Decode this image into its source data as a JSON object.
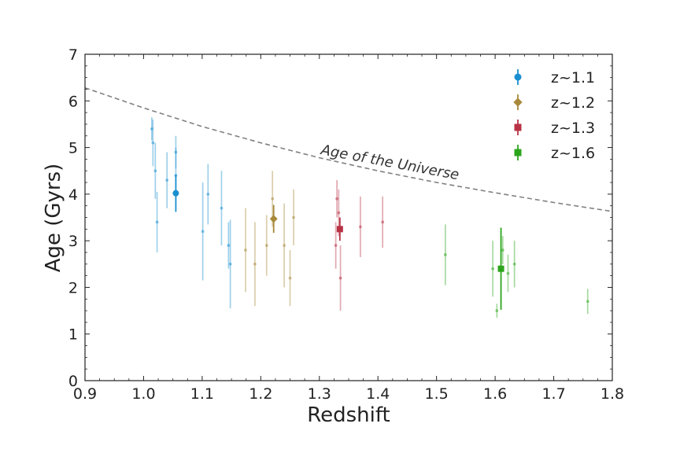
{
  "chart_data": {
    "type": "scatter",
    "title": "",
    "xlabel": "Redshift",
    "ylabel": "Age (Gyrs)",
    "xlim": [
      0.9,
      1.8
    ],
    "ylim": [
      0,
      7
    ],
    "xticks": [
      "0.9",
      "1.0",
      "1.1",
      "1.2",
      "1.3",
      "1.4",
      "1.5",
      "1.6",
      "1.7",
      "1.8"
    ],
    "yticks": [
      "0",
      "1",
      "2",
      "3",
      "4",
      "5",
      "6",
      "7"
    ],
    "grid": false,
    "legend_position": "top-right",
    "annotation": "Age of the Universe",
    "universe_age_curve": {
      "x": [
        0.9,
        1.0,
        1.1,
        1.2,
        1.3,
        1.4,
        1.5,
        1.6,
        1.7,
        1.8
      ],
      "y": [
        6.28,
        5.85,
        5.45,
        5.1,
        4.78,
        4.5,
        4.25,
        4.03,
        3.82,
        3.63
      ]
    },
    "series": [
      {
        "name": "z~1.1",
        "color": "#1a8fd0",
        "marker": "circle",
        "stack": {
          "x": 1.055,
          "y": 4.02,
          "err": 0.4
        },
        "galaxies": [
          {
            "x": 1.014,
            "y": 5.4,
            "err": 0.25
          },
          {
            "x": 1.016,
            "y": 5.1,
            "err": 0.5
          },
          {
            "x": 1.02,
            "y": 4.5,
            "err": 0.6
          },
          {
            "x": 1.023,
            "y": 3.4,
            "err": 0.65
          },
          {
            "x": 1.04,
            "y": 4.3,
            "err": 0.6
          },
          {
            "x": 1.055,
            "y": 4.9,
            "err": 0.35
          },
          {
            "x": 1.055,
            "y": 4.4,
            "err": 0.6
          },
          {
            "x": 1.101,
            "y": 3.2,
            "err": 1.05
          },
          {
            "x": 1.11,
            "y": 4.0,
            "err": 0.65
          },
          {
            "x": 1.133,
            "y": 3.7,
            "err": 0.8
          },
          {
            "x": 1.145,
            "y": 2.9,
            "err": 0.5
          },
          {
            "x": 1.148,
            "y": 2.5,
            "err": 0.95
          }
        ]
      },
      {
        "name": "z~1.2",
        "color": "#a8893a",
        "marker": "diamond",
        "stack": {
          "x": 1.222,
          "y": 3.47,
          "err": 0.3
        },
        "galaxies": [
          {
            "x": 1.174,
            "y": 2.8,
            "err": 0.9
          },
          {
            "x": 1.19,
            "y": 2.5,
            "err": 0.9
          },
          {
            "x": 1.21,
            "y": 2.9,
            "err": 0.65
          },
          {
            "x": 1.22,
            "y": 3.9,
            "err": 0.6
          },
          {
            "x": 1.24,
            "y": 2.9,
            "err": 0.9
          },
          {
            "x": 1.25,
            "y": 2.2,
            "err": 0.6
          },
          {
            "x": 1.256,
            "y": 3.5,
            "err": 0.6
          }
        ]
      },
      {
        "name": "z~1.3",
        "color": "#b83245",
        "marker": "square",
        "stack": {
          "x": 1.335,
          "y": 3.25,
          "err": 0.25
        },
        "galaxies": [
          {
            "x": 1.328,
            "y": 2.9,
            "err": 0.5
          },
          {
            "x": 1.33,
            "y": 3.9,
            "err": 0.4
          },
          {
            "x": 1.333,
            "y": 3.6,
            "err": 0.5
          },
          {
            "x": 1.336,
            "y": 2.2,
            "err": 0.7
          },
          {
            "x": 1.37,
            "y": 3.3,
            "err": 0.65
          },
          {
            "x": 1.408,
            "y": 3.4,
            "err": 0.55
          }
        ]
      },
      {
        "name": "z~1.6",
        "color": "#2ca51c",
        "marker": "square",
        "stack": {
          "x": 1.61,
          "y": 2.4,
          "err": 0.88
        },
        "galaxies": [
          {
            "x": 1.515,
            "y": 2.7,
            "err": 0.65
          },
          {
            "x": 1.596,
            "y": 2.4,
            "err": 0.6
          },
          {
            "x": 1.603,
            "y": 1.5,
            "err": 0.15
          },
          {
            "x": 1.613,
            "y": 2.8,
            "err": 0.3
          },
          {
            "x": 1.622,
            "y": 2.3,
            "err": 0.4
          },
          {
            "x": 1.633,
            "y": 2.5,
            "err": 0.5
          },
          {
            "x": 1.758,
            "y": 1.7,
            "err": 0.27
          }
        ]
      }
    ]
  }
}
